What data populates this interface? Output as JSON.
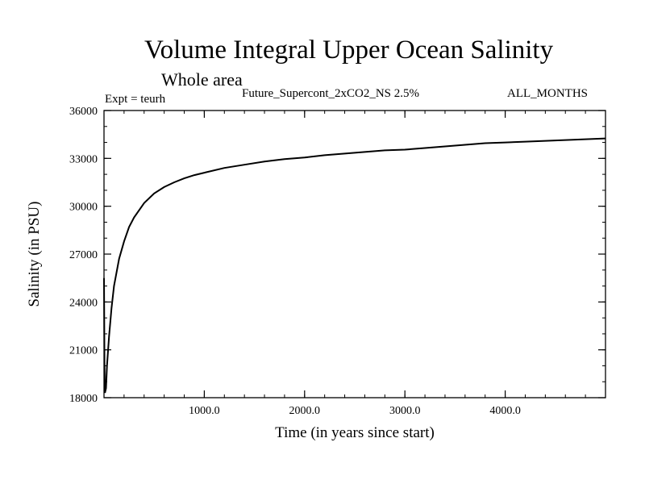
{
  "header": {
    "title": "Volume Integral Upper Ocean Salinity",
    "subtitle": "Whole area",
    "experiment": "Expt = teurh",
    "run_name": "Future_Supercont_2xCO2_NS 2.5%",
    "months": "ALL_MONTHS"
  },
  "chart_data": {
    "type": "line",
    "xlabel": "Time (in years since start)",
    "ylabel": "Salinity (in PSU)",
    "xlim": [
      0,
      5000
    ],
    "ylim": [
      18000,
      36000
    ],
    "x_ticks": [
      1000,
      2000,
      3000,
      4000
    ],
    "x_tick_labels": [
      "1000.0",
      "2000.0",
      "3000.0",
      "4000.0"
    ],
    "y_ticks": [
      18000,
      21000,
      24000,
      27000,
      30000,
      33000,
      36000
    ],
    "y_tick_labels": [
      "18000",
      "21000",
      "24000",
      "27000",
      "30000",
      "33000",
      "36000"
    ],
    "grid": false,
    "series": [
      {
        "color": "#000000",
        "x": [
          0,
          5,
          10,
          20,
          30,
          50,
          75,
          100,
          150,
          200,
          250,
          300,
          400,
          500,
          600,
          700,
          800,
          900,
          1000,
          1200,
          1400,
          1600,
          1800,
          2000,
          2200,
          2400,
          2600,
          2800,
          3000,
          3200,
          3400,
          3600,
          3800,
          4000,
          4200,
          4400,
          4600,
          4800,
          5000
        ],
        "y": [
          25500,
          20000,
          18300,
          18600,
          20000,
          21800,
          23600,
          25000,
          26700,
          27800,
          28700,
          29300,
          30200,
          30800,
          31200,
          31500,
          31750,
          31950,
          32100,
          32400,
          32600,
          32800,
          32950,
          33050,
          33200,
          33300,
          33400,
          33500,
          33550,
          33650,
          33750,
          33850,
          33950,
          34000,
          34050,
          34100,
          34150,
          34200,
          34250
        ]
      }
    ]
  }
}
